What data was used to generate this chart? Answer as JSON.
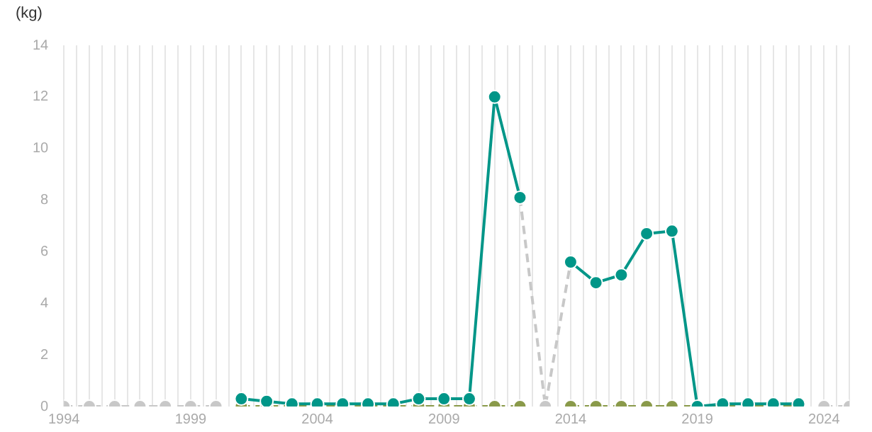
{
  "chart_data": {
    "type": "line",
    "ylabel": "(kg)",
    "x": [
      1994,
      1995,
      1996,
      1997,
      1998,
      1999,
      2000,
      2001,
      2002,
      2003,
      2004,
      2005,
      2006,
      2007,
      2008,
      2009,
      2010,
      2011,
      2012,
      2013,
      2014,
      2015,
      2016,
      2017,
      2018,
      2019,
      2020,
      2021,
      2022,
      2023,
      2024,
      2025
    ],
    "xlim": [
      1994,
      2025
    ],
    "xticks": [
      1994,
      {
        "value": 1994.5,
        "label": null
      },
      {
        "value": 1995,
        "label": null
      },
      {
        "value": 1995.5,
        "label": null
      },
      {
        "value": 1996,
        "label": null
      },
      {
        "value": 1996.5,
        "label": null
      },
      {
        "value": 1997,
        "label": null
      },
      {
        "value": 1997.5,
        "label": null
      },
      {
        "value": 1998,
        "label": null
      },
      {
        "value": 1998.5,
        "label": null
      },
      1999,
      {
        "value": 1999.5,
        "label": null
      },
      {
        "value": 2000,
        "label": null
      },
      {
        "value": 2000.5,
        "label": null
      },
      {
        "value": 2001,
        "label": null
      },
      {
        "value": 2001.5,
        "label": null
      },
      {
        "value": 2002,
        "label": null
      },
      {
        "value": 2002.5,
        "label": null
      },
      {
        "value": 2003,
        "label": null
      },
      {
        "value": 2003.5,
        "label": null
      },
      2004,
      {
        "value": 2004.5,
        "label": null
      },
      {
        "value": 2005,
        "label": null
      },
      {
        "value": 2005.5,
        "label": null
      },
      {
        "value": 2006,
        "label": null
      },
      {
        "value": 2006.5,
        "label": null
      },
      {
        "value": 2007,
        "label": null
      },
      {
        "value": 2007.5,
        "label": null
      },
      {
        "value": 2008,
        "label": null
      },
      {
        "value": 2008.5,
        "label": null
      },
      2009,
      {
        "value": 2009.5,
        "label": null
      },
      {
        "value": 2010,
        "label": null
      },
      {
        "value": 2010.5,
        "label": null
      },
      {
        "value": 2011,
        "label": null
      },
      {
        "value": 2011.5,
        "label": null
      },
      {
        "value": 2012,
        "label": null
      },
      {
        "value": 2012.5,
        "label": null
      },
      {
        "value": 2013,
        "label": null
      },
      {
        "value": 2013.5,
        "label": null
      },
      2014,
      {
        "value": 2014.5,
        "label": null
      },
      {
        "value": 2015,
        "label": null
      },
      {
        "value": 2015.5,
        "label": null
      },
      {
        "value": 2016,
        "label": null
      },
      {
        "value": 2016.5,
        "label": null
      },
      {
        "value": 2017,
        "label": null
      },
      {
        "value": 2017.5,
        "label": null
      },
      {
        "value": 2018,
        "label": null
      },
      {
        "value": 2018.5,
        "label": null
      },
      2019,
      {
        "value": 2019.5,
        "label": null
      },
      {
        "value": 2020,
        "label": null
      },
      {
        "value": 2020.5,
        "label": null
      },
      {
        "value": 2021,
        "label": null
      },
      {
        "value": 2021.5,
        "label": null
      },
      {
        "value": 2022,
        "label": null
      },
      {
        "value": 2022.5,
        "label": null
      },
      {
        "value": 2023,
        "label": null
      },
      {
        "value": 2023.5,
        "label": null
      },
      2024,
      {
        "value": 2024.5,
        "label": null
      },
      {
        "value": 2025,
        "label": null
      }
    ],
    "ylim": [
      0,
      14
    ],
    "yticks": [
      0,
      2,
      4,
      6,
      8,
      10,
      12,
      14
    ],
    "grid": "x",
    "legend": false,
    "marker": "circle",
    "series": [
      {
        "color": "#009688",
        "line_style": "solid",
        "values": [
          null,
          null,
          null,
          null,
          null,
          null,
          null,
          0.3,
          0.2,
          0.1,
          0.1,
          0.1,
          0.1,
          0.1,
          0.3,
          0.3,
          0.3,
          12,
          8.1,
          null,
          5.6,
          4.8,
          5.1,
          6.7,
          6.8,
          0,
          0.1,
          0.1,
          0.1,
          0.1,
          null,
          null
        ]
      },
      {
        "color": "#8a9a4a",
        "line_style": "dashed",
        "values": [
          null,
          null,
          null,
          null,
          null,
          null,
          null,
          0,
          0,
          0,
          0,
          0,
          0,
          0,
          0,
          0,
          0,
          0,
          0,
          null,
          0,
          0,
          0,
          0,
          0,
          0,
          0,
          0,
          0,
          0,
          null,
          null
        ]
      },
      {
        "color": "#c8c8c8",
        "line_style": "dashed",
        "values": [
          0,
          0,
          0,
          0,
          0,
          0,
          0,
          null,
          null,
          null,
          null,
          null,
          null,
          null,
          null,
          null,
          null,
          null,
          8.1,
          0,
          5.6,
          null,
          null,
          null,
          null,
          null,
          null,
          null,
          null,
          null,
          0,
          0
        ]
      }
    ]
  }
}
